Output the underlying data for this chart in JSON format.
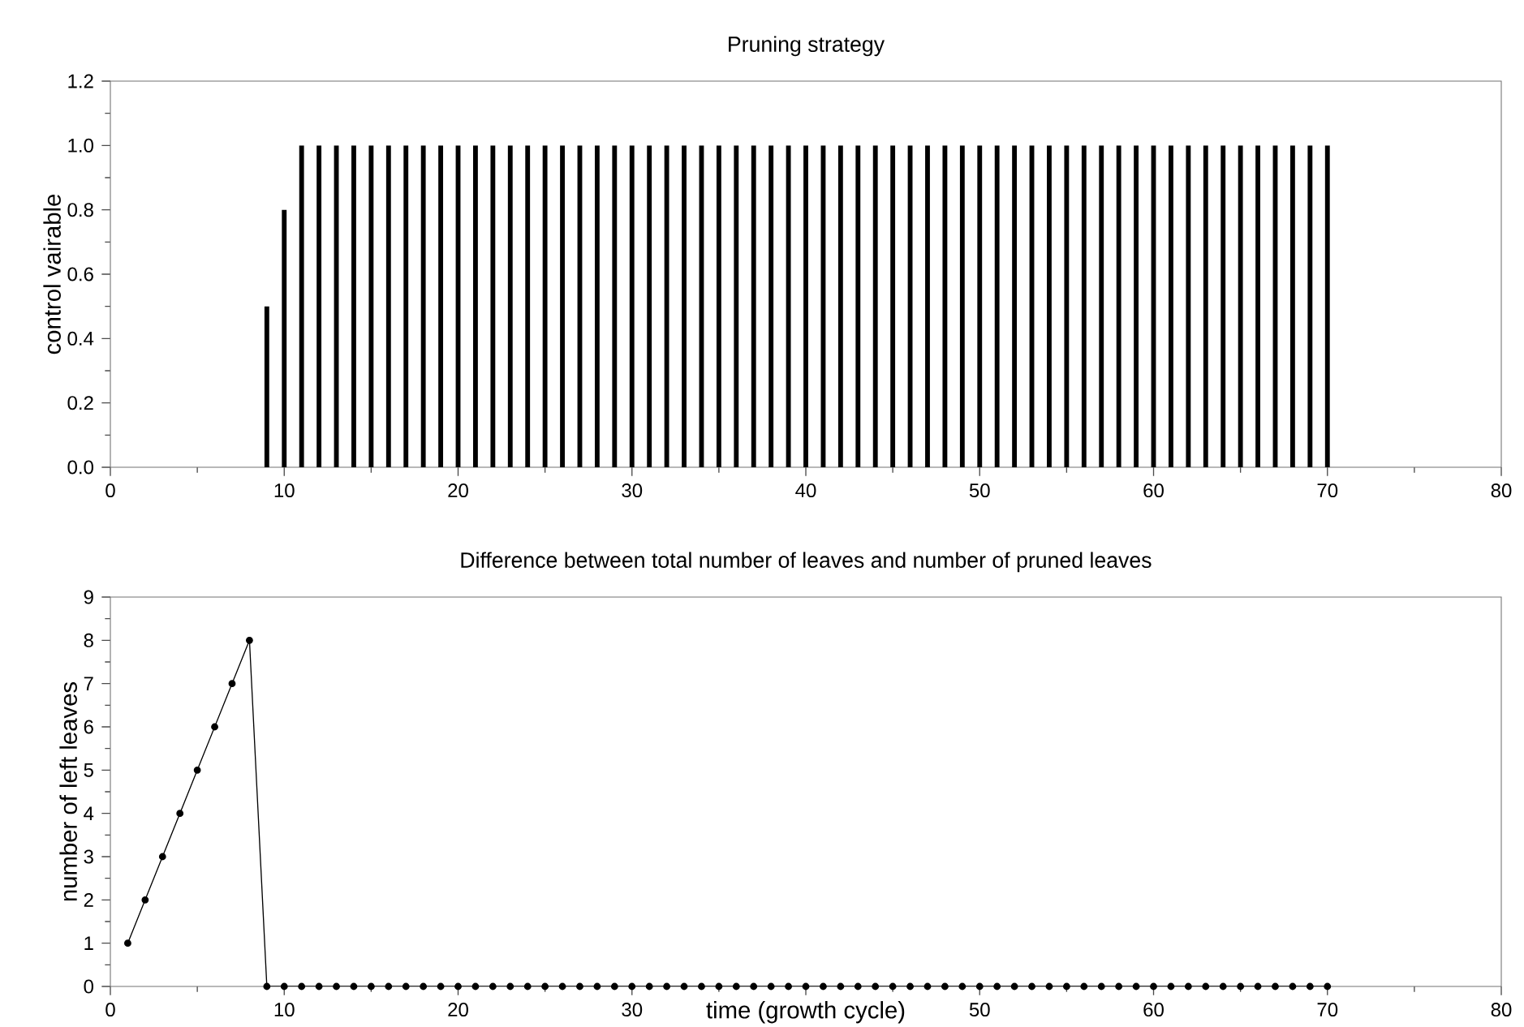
{
  "chart_data": [
    {
      "type": "bar",
      "title": "Pruning strategy",
      "ylabel": "control vairable",
      "x": [
        1,
        2,
        3,
        4,
        5,
        6,
        7,
        8,
        9,
        10,
        11,
        12,
        13,
        14,
        15,
        16,
        17,
        18,
        19,
        20,
        21,
        22,
        23,
        24,
        25,
        26,
        27,
        28,
        29,
        30,
        31,
        32,
        33,
        34,
        35,
        36,
        37,
        38,
        39,
        40,
        41,
        42,
        43,
        44,
        45,
        46,
        47,
        48,
        49,
        50,
        51,
        52,
        53,
        54,
        55,
        56,
        57,
        58,
        59,
        60,
        61,
        62,
        63,
        64,
        65,
        66,
        67,
        68,
        69,
        70
      ],
      "values": [
        0,
        0,
        0,
        0,
        0,
        0,
        0,
        0,
        0.5,
        0.8,
        1,
        1,
        1,
        1,
        1,
        1,
        1,
        1,
        1,
        1,
        1,
        1,
        1,
        1,
        1,
        1,
        1,
        1,
        1,
        1,
        1,
        1,
        1,
        1,
        1,
        1,
        1,
        1,
        1,
        1,
        1,
        1,
        1,
        1,
        1,
        1,
        1,
        1,
        1,
        1,
        1,
        1,
        1,
        1,
        1,
        1,
        1,
        1,
        1,
        1,
        1,
        1,
        1,
        1,
        1,
        1,
        1,
        1,
        1,
        1
      ],
      "color": "#000000",
      "xlim": [
        0,
        80
      ],
      "xticks": [
        0,
        10,
        20,
        30,
        40,
        50,
        60,
        70,
        80
      ],
      "ylim": [
        0,
        1.2
      ],
      "yticks": [
        {
          "value": 0,
          "label": "0.0"
        },
        0.2,
        0.4,
        0.6,
        0.8,
        {
          "value": 1,
          "label": "1.0"
        },
        1.2
      ]
    },
    {
      "type": "line",
      "title": "Difference between total number of leaves and number of pruned leaves",
      "xlabel": "time (growth cycle)",
      "ylabel": "number of left leaves",
      "x": [
        1,
        2,
        3,
        4,
        5,
        6,
        7,
        8,
        9,
        10,
        11,
        12,
        13,
        14,
        15,
        16,
        17,
        18,
        19,
        20,
        21,
        22,
        23,
        24,
        25,
        26,
        27,
        28,
        29,
        30,
        31,
        32,
        33,
        34,
        35,
        36,
        37,
        38,
        39,
        40,
        41,
        42,
        43,
        44,
        45,
        46,
        47,
        48,
        49,
        50,
        51,
        52,
        53,
        54,
        55,
        56,
        57,
        58,
        59,
        60,
        61,
        62,
        63,
        64,
        65,
        66,
        67,
        68,
        69,
        70
      ],
      "values": [
        1,
        2,
        3,
        4,
        5,
        6,
        7,
        8,
        0,
        0,
        0,
        0,
        0,
        0,
        0,
        0,
        0,
        0,
        0,
        0,
        0,
        0,
        0,
        0,
        0,
        0,
        0,
        0,
        0,
        0,
        0,
        0,
        0,
        0,
        0,
        0,
        0,
        0,
        0,
        0,
        0,
        0,
        0,
        0,
        0,
        0,
        0,
        0,
        0,
        0,
        0,
        0,
        0,
        0,
        0,
        0,
        0,
        0,
        0,
        0,
        0,
        0,
        0,
        0,
        0,
        0,
        0,
        0,
        0,
        0
      ],
      "color": "#000000",
      "marker": "circle",
      "xlim": [
        0,
        80
      ],
      "xticks": [
        0,
        10,
        20,
        30,
        {
          "value": 40,
          "label": null
        },
        50,
        60,
        70,
        80
      ],
      "ylim": [
        0,
        9
      ],
      "yticks": [
        0,
        1,
        2,
        3,
        4,
        5,
        6,
        7,
        8,
        9
      ]
    }
  ]
}
